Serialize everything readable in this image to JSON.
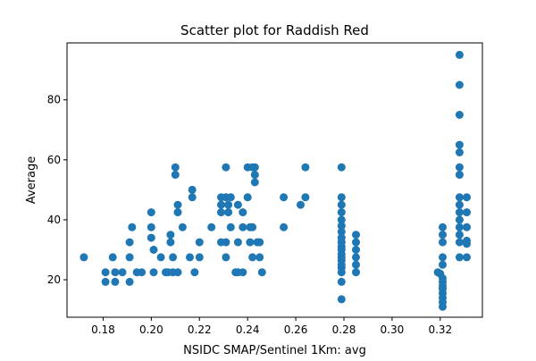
{
  "chart_data": {
    "type": "scatter",
    "title": "Scatter plot for Raddish Red",
    "xlabel": "NSIDC SMAP/Sentinel 1Km: avg",
    "ylabel": "Average",
    "xlim": [
      0.165,
      0.3375
    ],
    "ylim": [
      7.5,
      99
    ],
    "xticks": [
      0.18,
      0.2,
      0.22,
      0.24,
      0.26,
      0.28,
      0.3,
      0.32
    ],
    "xtick_labels": [
      "0.18",
      "0.20",
      "0.22",
      "0.24",
      "0.26",
      "0.28",
      "0.30",
      "0.32"
    ],
    "yticks": [
      20,
      40,
      60,
      80
    ],
    "ytick_labels": [
      "20",
      "40",
      "60",
      "80"
    ],
    "grid": false,
    "marker_color": "#1f77b4",
    "points": [
      [
        0.172,
        27.5
      ],
      [
        0.181,
        19.3
      ],
      [
        0.181,
        22.5
      ],
      [
        0.184,
        27.5
      ],
      [
        0.185,
        19.3
      ],
      [
        0.185,
        22.5
      ],
      [
        0.188,
        22.5
      ],
      [
        0.191,
        19.3
      ],
      [
        0.191,
        27.5
      ],
      [
        0.191,
        32.5
      ],
      [
        0.192,
        37.5
      ],
      [
        0.194,
        22.5
      ],
      [
        0.196,
        22.5
      ],
      [
        0.2,
        37.5
      ],
      [
        0.2,
        42.5
      ],
      [
        0.2,
        34.0
      ],
      [
        0.201,
        22.5
      ],
      [
        0.201,
        30.0
      ],
      [
        0.204,
        27.5
      ],
      [
        0.206,
        22.5
      ],
      [
        0.207,
        22.5
      ],
      [
        0.208,
        32.5
      ],
      [
        0.208,
        35.0
      ],
      [
        0.209,
        27.5
      ],
      [
        0.209,
        22.5
      ],
      [
        0.21,
        57.5
      ],
      [
        0.21,
        55.0
      ],
      [
        0.211,
        45.0
      ],
      [
        0.211,
        42.5
      ],
      [
        0.211,
        22.5
      ],
      [
        0.213,
        37.5
      ],
      [
        0.216,
        27.5
      ],
      [
        0.217,
        47.5
      ],
      [
        0.217,
        50.0
      ],
      [
        0.218,
        22.5
      ],
      [
        0.22,
        32.5
      ],
      [
        0.22,
        27.5
      ],
      [
        0.225,
        37.5
      ],
      [
        0.229,
        42.5
      ],
      [
        0.229,
        45.0
      ],
      [
        0.229,
        47.5
      ],
      [
        0.229,
        32.5
      ],
      [
        0.231,
        27.5
      ],
      [
        0.231,
        32.5
      ],
      [
        0.231,
        47.5
      ],
      [
        0.231,
        57.5
      ],
      [
        0.232,
        42.5
      ],
      [
        0.232,
        45.0
      ],
      [
        0.233,
        37.5
      ],
      [
        0.233,
        47.5
      ],
      [
        0.235,
        22.5
      ],
      [
        0.236,
        22.5
      ],
      [
        0.236,
        32.5
      ],
      [
        0.236,
        45.0
      ],
      [
        0.238,
        22.5
      ],
      [
        0.238,
        37.5
      ],
      [
        0.238,
        42.5
      ],
      [
        0.24,
        57.5
      ],
      [
        0.24,
        47.5
      ],
      [
        0.241,
        37.5
      ],
      [
        0.241,
        32.5
      ],
      [
        0.242,
        57.5
      ],
      [
        0.242,
        27.5
      ],
      [
        0.242,
        37.5
      ],
      [
        0.243,
        52.5
      ],
      [
        0.243,
        55.0
      ],
      [
        0.243,
        57.5
      ],
      [
        0.244,
        32.5
      ],
      [
        0.245,
        27.5
      ],
      [
        0.245,
        32.5
      ],
      [
        0.246,
        22.5
      ],
      [
        0.255,
        47.5
      ],
      [
        0.255,
        37.5
      ],
      [
        0.262,
        45.0
      ],
      [
        0.264,
        47.5
      ],
      [
        0.264,
        57.5
      ],
      [
        0.279,
        57.5
      ],
      [
        0.279,
        47.5
      ],
      [
        0.279,
        45.0
      ],
      [
        0.279,
        42.5
      ],
      [
        0.279,
        40.0
      ],
      [
        0.279,
        38.0
      ],
      [
        0.279,
        36.0
      ],
      [
        0.279,
        34.0
      ],
      [
        0.279,
        32.5
      ],
      [
        0.279,
        31.0
      ],
      [
        0.279,
        30.0
      ],
      [
        0.279,
        28.5
      ],
      [
        0.279,
        27.5
      ],
      [
        0.279,
        26.5
      ],
      [
        0.279,
        25.0
      ],
      [
        0.279,
        24.0
      ],
      [
        0.279,
        22.5
      ],
      [
        0.279,
        19.3
      ],
      [
        0.279,
        13.5
      ],
      [
        0.285,
        35.0
      ],
      [
        0.285,
        32.5
      ],
      [
        0.285,
        30.0
      ],
      [
        0.285,
        27.5
      ],
      [
        0.285,
        25.0
      ],
      [
        0.285,
        22.5
      ],
      [
        0.319,
        22.5
      ],
      [
        0.32,
        22.0
      ],
      [
        0.321,
        37.5
      ],
      [
        0.321,
        35.0
      ],
      [
        0.321,
        32.5
      ],
      [
        0.321,
        27.5
      ],
      [
        0.321,
        25.0
      ],
      [
        0.321,
        20.5
      ],
      [
        0.321,
        19.3
      ],
      [
        0.321,
        18.0
      ],
      [
        0.321,
        17.0
      ],
      [
        0.321,
        15.5
      ],
      [
        0.321,
        14.0
      ],
      [
        0.321,
        12.5
      ],
      [
        0.321,
        11.0
      ],
      [
        0.328,
        95.0
      ],
      [
        0.328,
        85.0
      ],
      [
        0.328,
        75.0
      ],
      [
        0.328,
        65.0
      ],
      [
        0.328,
        62.5
      ],
      [
        0.328,
        57.5
      ],
      [
        0.328,
        55.0
      ],
      [
        0.328,
        47.5
      ],
      [
        0.328,
        45.0
      ],
      [
        0.328,
        42.5
      ],
      [
        0.328,
        40.0
      ],
      [
        0.328,
        37.5
      ],
      [
        0.328,
        35.0
      ],
      [
        0.328,
        32.5
      ],
      [
        0.328,
        27.5
      ],
      [
        0.331,
        47.5
      ],
      [
        0.331,
        42.5
      ],
      [
        0.331,
        37.5
      ],
      [
        0.331,
        33.0
      ],
      [
        0.331,
        32.0
      ],
      [
        0.331,
        27.5
      ]
    ]
  }
}
